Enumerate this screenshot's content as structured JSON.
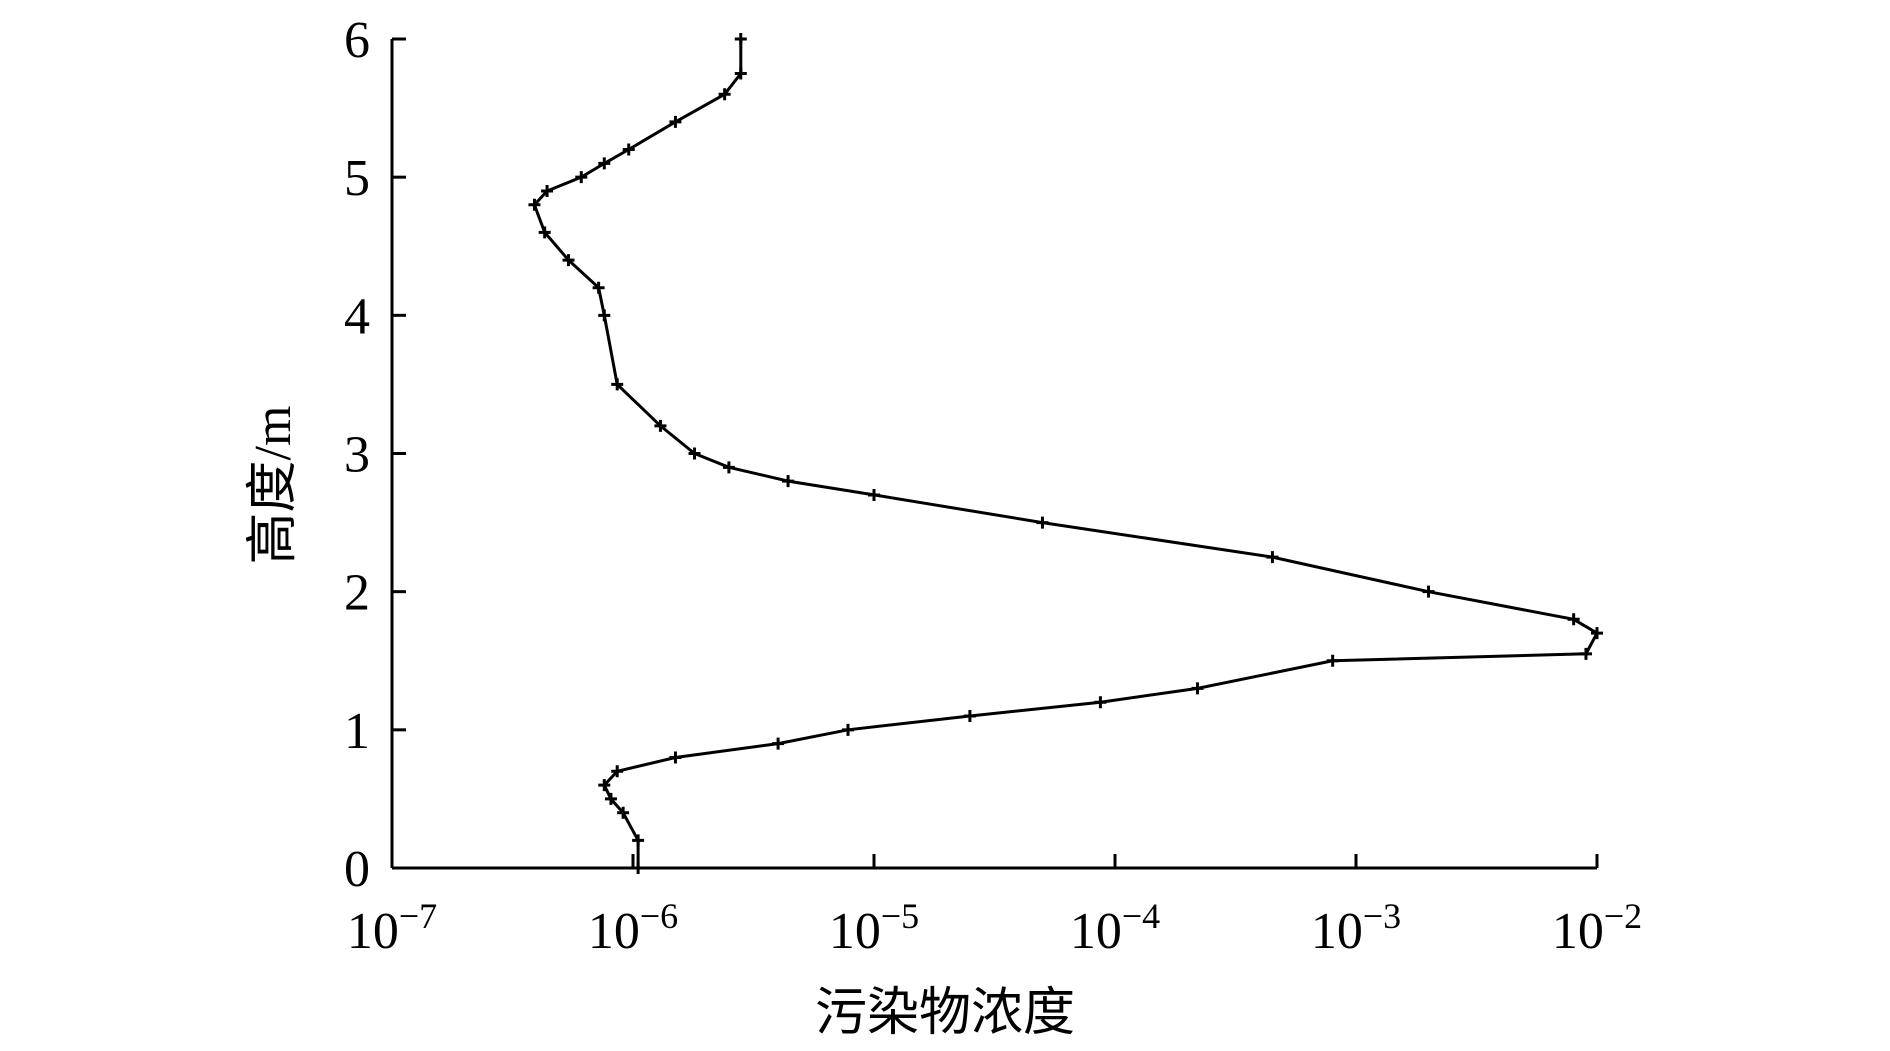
{
  "chart_data": {
    "type": "line",
    "xlabel": "污染物浓度",
    "ylabel": "高度/m",
    "x": [
      1.05e-06,
      1.05e-06,
      9.1e-07,
      8.1e-07,
      7.6e-07,
      8.6e-07,
      1.5e-06,
      4e-06,
      7.8e-06,
      2.5e-05,
      8.7e-05,
      0.00022,
      0.0008,
      0.009,
      0.01,
      0.008,
      0.002,
      0.00045,
      5e-05,
      1e-05,
      4.4e-06,
      2.5e-06,
      1.8e-06,
      1.3e-06,
      8.6e-07,
      7.6e-07,
      7.2e-07,
      5.4e-07,
      4.3e-07,
      3.9e-07,
      4.4e-07,
      6.1e-07,
      7.6e-07,
      9.6e-07,
      1.5e-06,
      2.4e-06,
      2.8e-06,
      2.8e-06
    ],
    "values": [
      0,
      0.2,
      0.4,
      0.5,
      0.6,
      0.7,
      0.8,
      0.9,
      1.0,
      1.1,
      1.2,
      1.3,
      1.5,
      1.55,
      1.7,
      1.8,
      2.0,
      2.25,
      2.5,
      2.7,
      2.8,
      2.9,
      3.0,
      3.2,
      3.5,
      4.0,
      4.2,
      4.4,
      4.6,
      4.8,
      4.9,
      5.0,
      5.1,
      5.2,
      5.4,
      5.6,
      5.75,
      6.0
    ],
    "color": "#000000",
    "xscale": "log",
    "xlim": [
      1e-07,
      0.01
    ],
    "xticks": [
      {
        "value": 1e-07,
        "label": "10−7"
      },
      {
        "value": 1e-06,
        "label": "10−6"
      },
      {
        "value": 1e-05,
        "label": "10−5"
      },
      {
        "value": 0.0001,
        "label": "10−4"
      },
      {
        "value": 0.001,
        "label": "10−3"
      },
      {
        "value": 0.01,
        "label": "10−2"
      }
    ],
    "ylim": [
      0,
      6
    ],
    "yticks": [
      0,
      1,
      2,
      3,
      4,
      5,
      6
    ]
  }
}
